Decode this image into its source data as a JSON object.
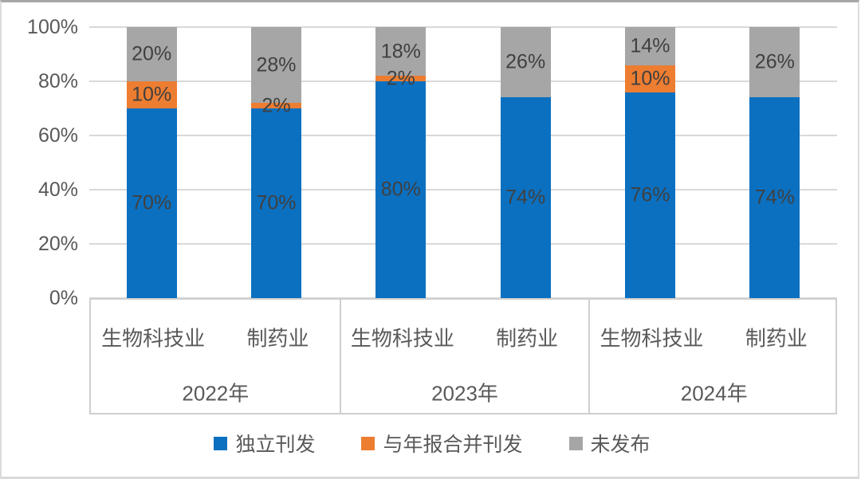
{
  "chart_data": {
    "type": "bar",
    "stacked": true,
    "percent_stacked": true,
    "title": "",
    "groups": [
      "2022年",
      "2023年",
      "2024年"
    ],
    "columns": [
      {
        "group": "2022年",
        "label": "生物科技业"
      },
      {
        "group": "2022年",
        "label": "制药业"
      },
      {
        "group": "2023年",
        "label": "生物科技业"
      },
      {
        "group": "2023年",
        "label": "制药业"
      },
      {
        "group": "2024年",
        "label": "生物科技业"
      },
      {
        "group": "2024年",
        "label": "制药业"
      }
    ],
    "series": [
      {
        "name": "独立刊发",
        "color": "#0B70C0",
        "values": [
          70,
          70,
          80,
          74,
          76,
          74
        ]
      },
      {
        "name": "与年报合并刊发",
        "color": "#ED7D31",
        "values": [
          10,
          2,
          2,
          0,
          10,
          0
        ]
      },
      {
        "name": "未发布",
        "color": "#A6A6A6",
        "values": [
          20,
          28,
          18,
          26,
          14,
          26
        ]
      }
    ],
    "ylim": [
      0,
      100
    ],
    "ytick_values": [
      0,
      20,
      40,
      60,
      80,
      100
    ],
    "ytick_labels": [
      "0%",
      "20%",
      "40%",
      "60%",
      "80%",
      "100%"
    ],
    "value_suffix": "%",
    "grid": true,
    "legend_position": "bottom",
    "data_label_color": "#404040",
    "axis_text_color": "#595959"
  }
}
